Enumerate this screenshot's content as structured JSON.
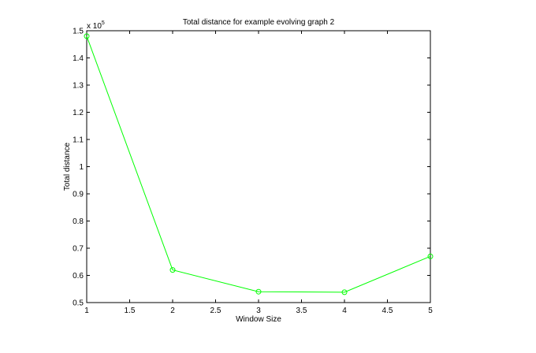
{
  "chart_data": {
    "type": "line",
    "title": "Total distance for example evolving graph 2",
    "xlabel": "Window Size",
    "ylabel": "Total distance",
    "y_multiplier_base": "x 10",
    "y_multiplier_exponent": "5",
    "xlim": [
      1,
      5
    ],
    "ylim": [
      0.5,
      1.5
    ],
    "xticks": [
      1,
      1.5,
      2,
      2.5,
      3,
      3.5,
      4,
      4.5,
      5
    ],
    "xtick_labels": [
      "1",
      "1.5",
      "2",
      "2.5",
      "3",
      "3.5",
      "4",
      "4.5",
      "5"
    ],
    "yticks": [
      0.5,
      0.6,
      0.7,
      0.8,
      0.9,
      1.0,
      1.1,
      1.2,
      1.3,
      1.4,
      1.5
    ],
    "ytick_labels": [
      "0.5",
      "0.6",
      "0.7",
      "0.8",
      "0.9",
      "1",
      "1.1",
      "1.2",
      "1.3",
      "1.4",
      "1.5"
    ],
    "grid": false,
    "series": [
      {
        "color": "#00ff00",
        "marker": "circle",
        "x": [
          1,
          2,
          3,
          4,
          5
        ],
        "y": [
          1.48,
          0.62,
          0.54,
          0.538,
          0.67
        ]
      }
    ]
  }
}
